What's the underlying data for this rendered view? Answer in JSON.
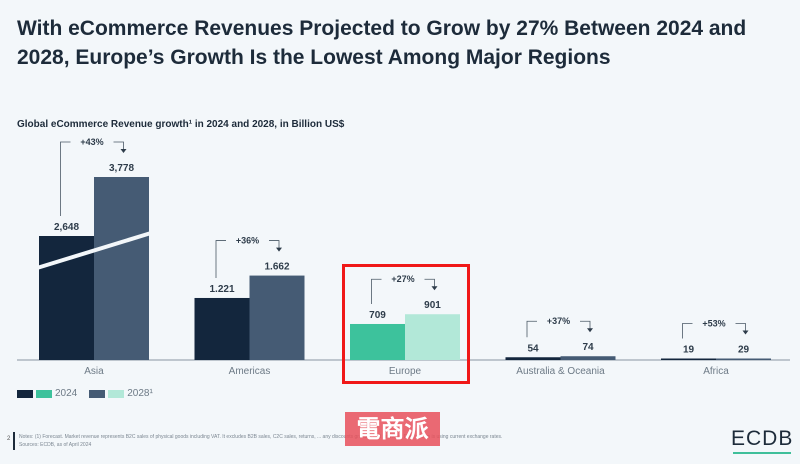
{
  "title": "With eCommerce Revenues Projected to Grow by 27% Between 2024 and 2028, Europe’s Growth Is the Lowest Among Major Regions",
  "chart_data": {
    "type": "bar",
    "title": "Global eCommerce Revenue growth¹ in 2024 and 2028, in Billion US$",
    "categories": [
      "Asia",
      "Americas",
      "Europe",
      "Australia & Oceania",
      "Africa"
    ],
    "series": [
      {
        "name": "2024",
        "values": [
          2648,
          1221,
          709,
          54,
          19
        ],
        "labels": [
          "2,648",
          "1.221",
          "709",
          "54",
          "19"
        ]
      },
      {
        "name": "2028¹",
        "values": [
          3778,
          1662,
          901,
          74,
          29
        ],
        "labels": [
          "3,778",
          "1.662",
          "901",
          "74",
          "29"
        ]
      }
    ],
    "growth": [
      "+43%",
      "+36%",
      "+27%",
      "+37%",
      "+53%"
    ],
    "highlighted": "Europe",
    "axis_break": "Asia",
    "legend": {
      "position": "bottom-left",
      "labels": [
        "2024",
        "2028¹"
      ]
    },
    "colors": {
      "dark_2024": "#13263d",
      "dark_2028": "#455b74",
      "hl_2024": "#3dc29c",
      "hl_2028": "#b2e8d8"
    }
  },
  "footer": {
    "page": "2",
    "notes": "Notes:    (1) Forecast. Market revenue represents B2C sales of physical goods including VAT. It excludes B2B sales, C2C sales, returns, ... any discounts granted and services. Data shown is using current exchange rates.",
    "sources": "Sources:    ECDB, as of April 2024",
    "logo": "ECDB",
    "watermark": "電商派"
  }
}
